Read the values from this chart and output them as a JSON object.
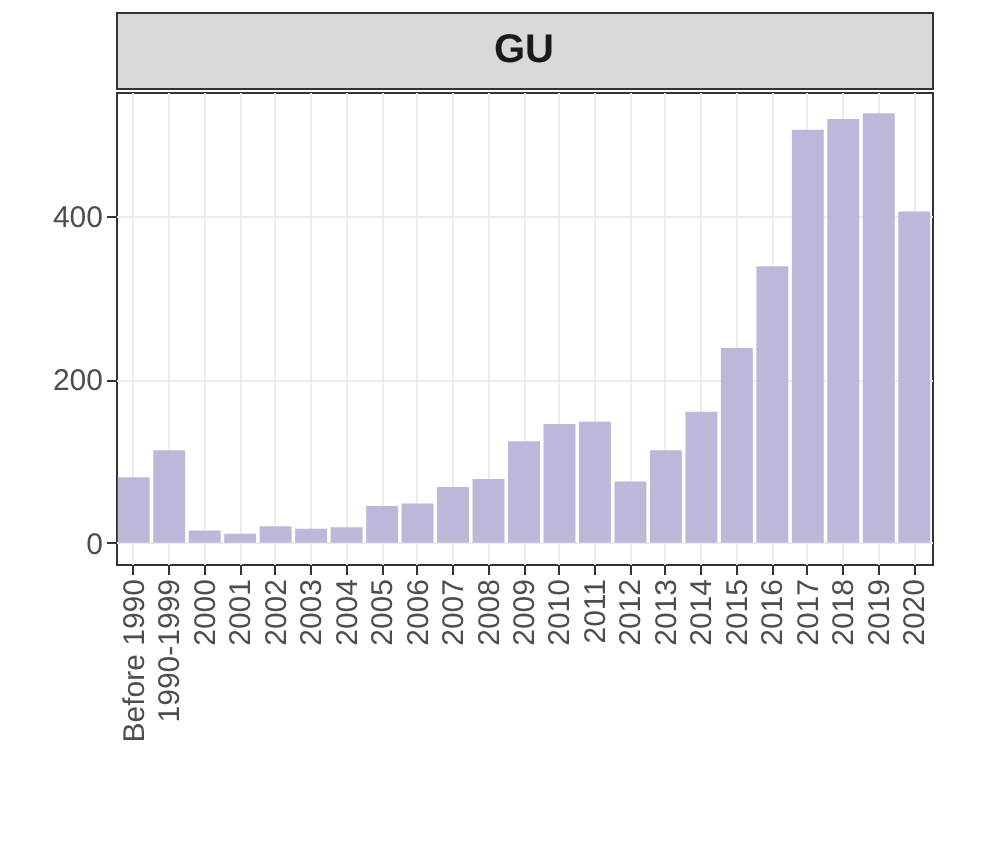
{
  "chart_data": {
    "type": "bar",
    "title": "GU",
    "categories": [
      "Before 1990",
      "1990-1999",
      "2000",
      "2001",
      "2002",
      "2003",
      "2004",
      "2005",
      "2006",
      "2007",
      "2008",
      "2009",
      "2010",
      "2011",
      "2012",
      "2013",
      "2014",
      "2015",
      "2016",
      "2017",
      "2018",
      "2019",
      "2020"
    ],
    "values": [
      80,
      113,
      15,
      11,
      20,
      17,
      19,
      45,
      48,
      68,
      78,
      124,
      145,
      148,
      75,
      113,
      160,
      238,
      338,
      505,
      518,
      525,
      405
    ],
    "color": "#bcb8da",
    "ylim": [
      -26,
      551
    ],
    "yticks": [
      0,
      200,
      400
    ],
    "grid": true
  }
}
